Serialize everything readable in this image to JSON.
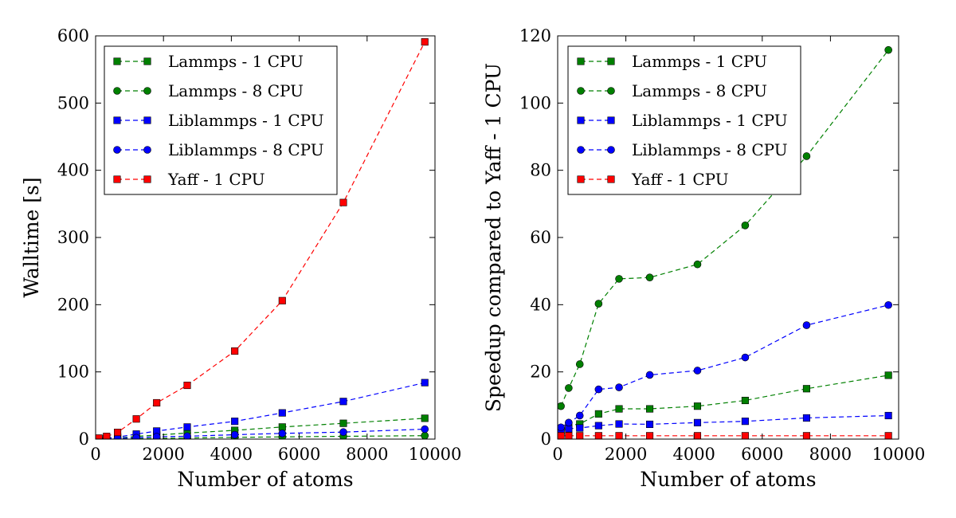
{
  "chart_data": [
    {
      "type": "line",
      "xlabel": "Number of atoms",
      "ylabel": "Walltime [s]",
      "xlim": [
        0,
        10000
      ],
      "ylim": [
        0,
        600
      ],
      "xticks": [
        0,
        2000,
        4000,
        6000,
        8000,
        10000
      ],
      "yticks": [
        0,
        100,
        200,
        300,
        400,
        500,
        600
      ],
      "grid": false,
      "legend_position": "top-left",
      "x": [
        96,
        324,
        648,
        1200,
        1800,
        2700,
        4100,
        5500,
        7300,
        9700
      ],
      "series": [
        {
          "name": "Lammps - 1 CPU",
          "color": "#008000",
          "marker": "square",
          "values": [
            0.15,
            0.6,
            1.5,
            4,
            6,
            9,
            13,
            18,
            23.5,
            31
          ]
        },
        {
          "name": "Lammps - 8 CPU",
          "color": "#008000",
          "marker": "circle",
          "values": [
            0.1,
            0.3,
            0.7,
            0.75,
            1.1,
            1.7,
            2.6,
            3.3,
            4.2,
            5.1
          ]
        },
        {
          "name": "Liblammps - 1 CPU",
          "color": "#0000ff",
          "marker": "square",
          "values": [
            0.5,
            1.3,
            3,
            7.5,
            12,
            18,
            26.5,
            39,
            56,
            84
          ]
        },
        {
          "name": "Liblammps - 8 CPU",
          "color": "#0000ff",
          "marker": "circle",
          "values": [
            0.4,
            0.8,
            1.4,
            2,
            3.5,
            4.3,
            6.5,
            8.5,
            10.4,
            14.8
          ]
        },
        {
          "name": "Yaff - 1 CPU",
          "color": "#ff0000",
          "marker": "square",
          "values": [
            1.5,
            4,
            10,
            30,
            54,
            80,
            131,
            206,
            352,
            591
          ]
        }
      ]
    },
    {
      "type": "line",
      "xlabel": "Number of atoms",
      "ylabel": "Speedup compared to Yaff - 1 CPU",
      "xlim": [
        0,
        10000
      ],
      "ylim": [
        0,
        120
      ],
      "xticks": [
        0,
        2000,
        4000,
        6000,
        8000,
        10000
      ],
      "yticks": [
        0,
        20,
        40,
        60,
        80,
        100,
        120
      ],
      "grid": false,
      "legend_position": "top-left",
      "x": [
        96,
        324,
        648,
        1200,
        1800,
        2700,
        4100,
        5500,
        7300,
        9700
      ],
      "series": [
        {
          "name": "Lammps - 1 CPU",
          "color": "#008000",
          "marker": "square",
          "values": [
            2.5,
            4.0,
            4.5,
            7.5,
            9,
            9,
            9.8,
            11.5,
            15,
            19
          ]
        },
        {
          "name": "Lammps - 8 CPU",
          "color": "#008000",
          "marker": "circle",
          "values": [
            9.8,
            15.2,
            22.3,
            40.3,
            47.7,
            48.1,
            52,
            63.6,
            84.2,
            115.8
          ]
        },
        {
          "name": "Liblammps - 1 CPU",
          "color": "#0000ff",
          "marker": "square",
          "values": [
            2.4,
            3.1,
            3.3,
            4.0,
            4.5,
            4.4,
            4.9,
            5.3,
            6.3,
            7.0
          ]
        },
        {
          "name": "Liblammps - 8 CPU",
          "color": "#0000ff",
          "marker": "circle",
          "values": [
            3.5,
            4.9,
            7.0,
            14.8,
            15.4,
            19.1,
            20.4,
            24.3,
            33.9,
            39.9
          ]
        },
        {
          "name": "Yaff - 1 CPU",
          "color": "#ff0000",
          "marker": "square",
          "values": [
            1,
            1,
            1,
            1,
            1,
            1,
            1,
            1,
            1,
            1
          ]
        }
      ]
    }
  ]
}
